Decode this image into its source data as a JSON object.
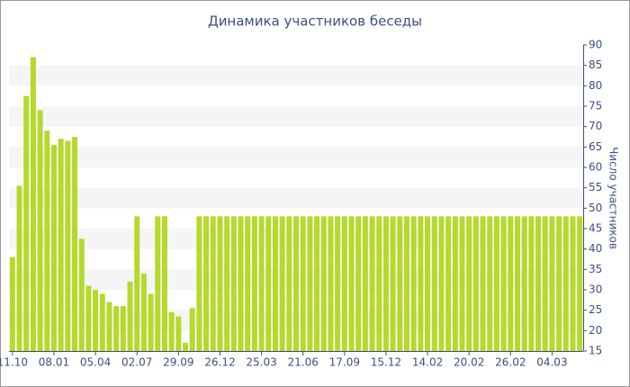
{
  "chart_data": {
    "type": "bar",
    "title": "Динамика участников беседы",
    "y_axis_label": "Число участников",
    "categories": [
      "11.10",
      null,
      null,
      null,
      null,
      null,
      "08.01",
      null,
      null,
      null,
      null,
      null,
      "05.04",
      null,
      null,
      null,
      null,
      null,
      "02.07",
      null,
      null,
      null,
      null,
      null,
      "29.09",
      null,
      null,
      null,
      null,
      null,
      "26.12",
      null,
      null,
      null,
      null,
      null,
      "25.03",
      null,
      null,
      null,
      null,
      null,
      "21.06",
      null,
      null,
      null,
      null,
      null,
      "17.09",
      null,
      null,
      null,
      null,
      null,
      "15.12",
      null,
      null,
      null,
      null,
      null,
      "14.02",
      null,
      null,
      null,
      null,
      null,
      "20.02",
      null,
      null,
      null,
      null,
      null,
      "26.02",
      null,
      null,
      null,
      null,
      null,
      "04.03",
      null,
      null,
      null,
      null
    ],
    "values": [
      38,
      55.5,
      77.5,
      87,
      74,
      69,
      65.5,
      67,
      66.5,
      67.5,
      42.5,
      31,
      30,
      29,
      27,
      26,
      26,
      32,
      48,
      34,
      29,
      48,
      48,
      24.5,
      23.5,
      17,
      25.5,
      48,
      48,
      48,
      48,
      48,
      48,
      48,
      48,
      48,
      48,
      48,
      48,
      48,
      48,
      48,
      48,
      48,
      48,
      48,
      48,
      48,
      48,
      48,
      48,
      48,
      48,
      48,
      48,
      48,
      48,
      48,
      48,
      48,
      48,
      48,
      48,
      48,
      48,
      48,
      48,
      48,
      48,
      48,
      48,
      48,
      48,
      48,
      48,
      48,
      48,
      48,
      48,
      48,
      48,
      48,
      48
    ],
    "color": "#b5d92c",
    "ylim": [
      15,
      90
    ],
    "yticks": [
      15,
      20,
      25,
      30,
      35,
      40,
      45,
      50,
      55,
      60,
      65,
      70,
      75,
      80,
      85,
      90
    ],
    "y_axis_side": "right",
    "grid_bands": true,
    "band_color": "#f5f5f5"
  }
}
